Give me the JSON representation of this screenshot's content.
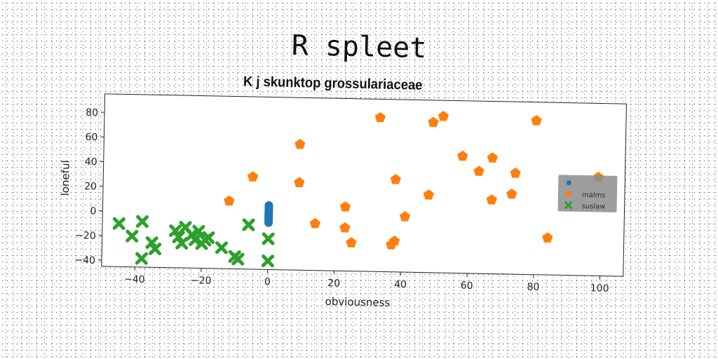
{
  "chart_data": {
    "type": "scatter",
    "title": "R spleet",
    "subtitle": "K j skunktop grossulariaceae",
    "xlabel": "obviousness",
    "ylabel": "loneful",
    "xlim": [
      -50,
      107
    ],
    "ylim": [
      -45,
      95
    ],
    "xticks": [
      -40,
      -20,
      0,
      20,
      40,
      60,
      80,
      100
    ],
    "xtick_labels": [
      "−40",
      "−20",
      "0",
      "20",
      "40",
      "60",
      "80",
      "100"
    ],
    "yticks": [
      -40,
      -20,
      0,
      20,
      40,
      60,
      80
    ],
    "ytick_labels": [
      "−40",
      "−20",
      "0",
      "20",
      "40",
      "60",
      "80"
    ],
    "grid": false,
    "legend_position": "center-right",
    "series": [
      {
        "name": "",
        "color": "#1f77b4",
        "marker": "circle",
        "points": [
          [
            0,
            7
          ],
          [
            0,
            6
          ],
          [
            0,
            5
          ],
          [
            0,
            4
          ],
          [
            0,
            3
          ],
          [
            0,
            2
          ],
          [
            0,
            1
          ],
          [
            0,
            0
          ],
          [
            0,
            -1
          ],
          [
            0,
            -2
          ],
          [
            0,
            -3
          ],
          [
            0,
            -4
          ],
          [
            0,
            -5
          ],
          [
            0,
            -6
          ],
          [
            0,
            -7
          ]
        ]
      },
      {
        "name": "malms",
        "color": "#ff7f0e",
        "marker": "pentagon",
        "points": [
          [
            -12,
            10
          ],
          [
            -5,
            30
          ],
          [
            9,
            57
          ],
          [
            9,
            26
          ],
          [
            14,
            -7
          ],
          [
            23,
            7
          ],
          [
            23,
            -10
          ],
          [
            25,
            -22
          ],
          [
            33,
            80
          ],
          [
            37,
            -23
          ],
          [
            38,
            -20
          ],
          [
            38,
            30
          ],
          [
            41,
            0
          ],
          [
            48,
            18
          ],
          [
            49,
            77
          ],
          [
            52,
            82
          ],
          [
            58,
            50
          ],
          [
            63,
            38
          ],
          [
            67,
            49
          ],
          [
            67,
            15
          ],
          [
            73,
            20
          ],
          [
            74,
            37
          ],
          [
            80,
            80
          ],
          [
            84,
            -15
          ],
          [
            99,
            35
          ]
        ]
      },
      {
        "name": "suslaw",
        "color": "#2ca02c",
        "marker": "x",
        "points": [
          [
            -45,
            -10
          ],
          [
            -38,
            -8
          ],
          [
            -41,
            -20
          ],
          [
            -38,
            -38
          ],
          [
            -35,
            -25
          ],
          [
            -34,
            -30
          ],
          [
            -28,
            -15
          ],
          [
            -27,
            -20
          ],
          [
            -26,
            -25
          ],
          [
            -25,
            -12
          ],
          [
            -23,
            -18
          ],
          [
            -22,
            -22
          ],
          [
            -21,
            -15
          ],
          [
            -20,
            -25
          ],
          [
            -19,
            -22
          ],
          [
            -18,
            -20
          ],
          [
            -14,
            -28
          ],
          [
            -10,
            -35
          ],
          [
            -9,
            -37
          ],
          [
            -6,
            -9
          ],
          [
            0,
            -20
          ],
          [
            0,
            -38
          ]
        ]
      }
    ]
  }
}
